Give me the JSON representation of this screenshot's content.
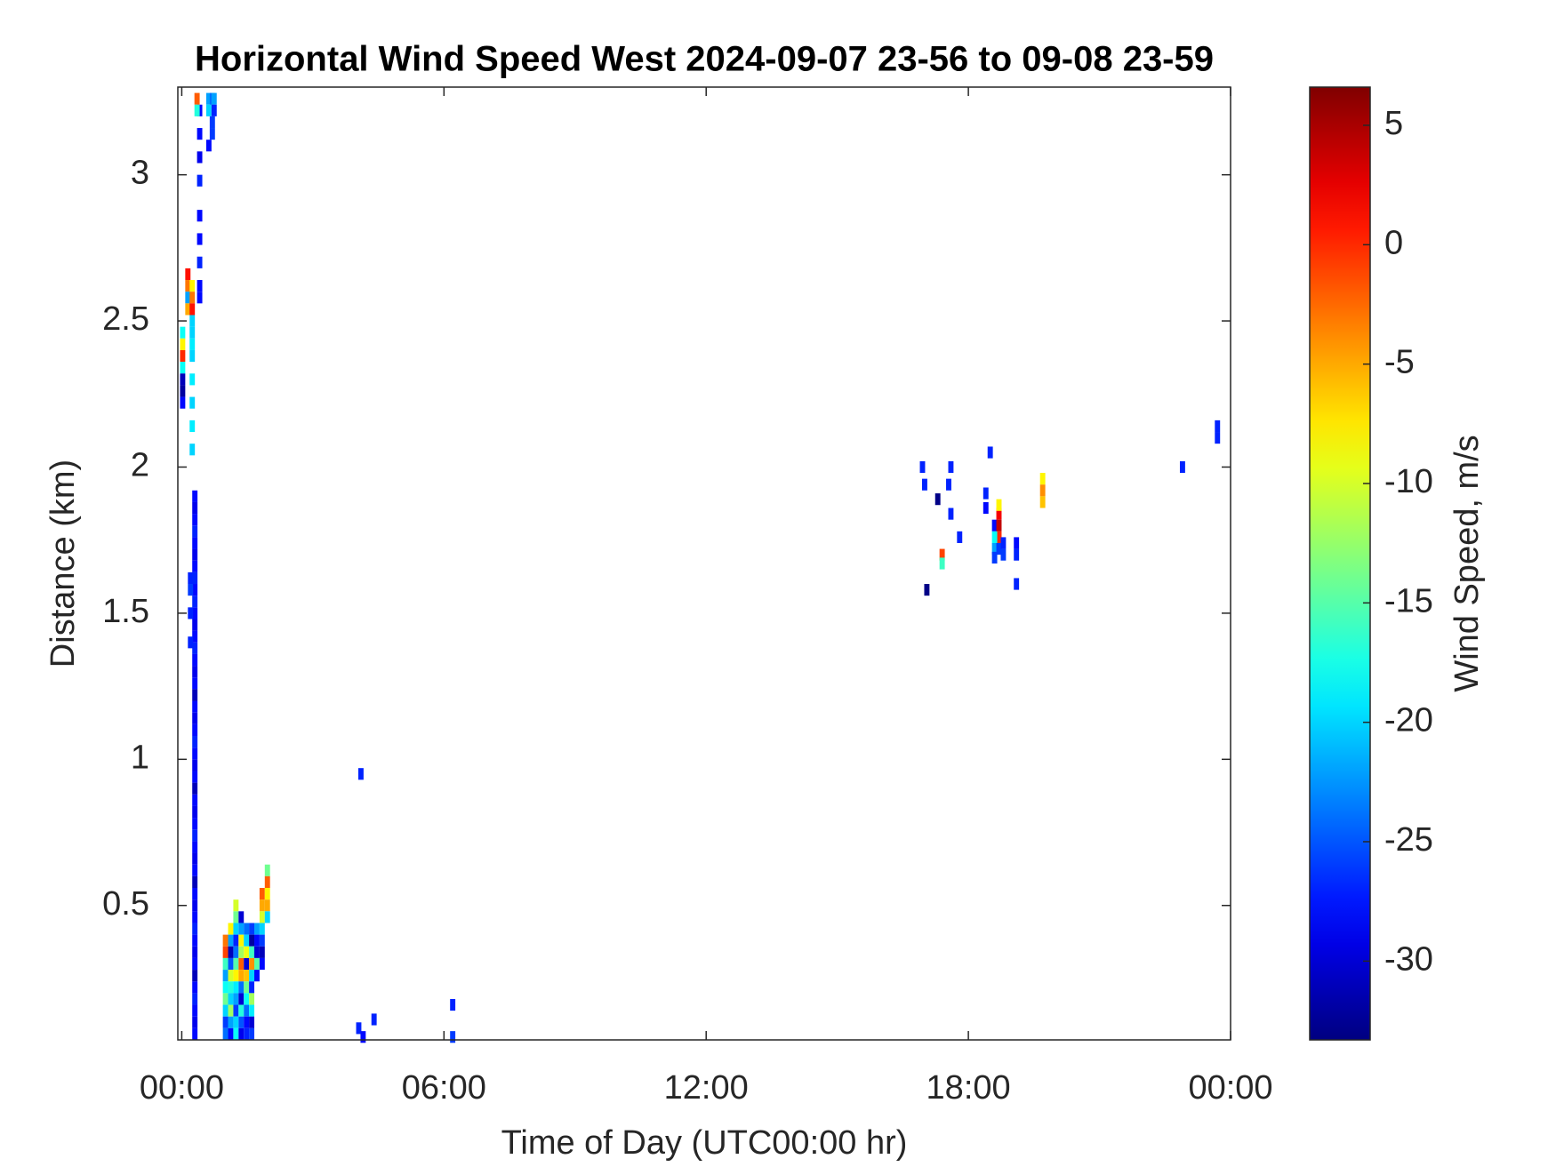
{
  "chart_data": {
    "type": "heatmap",
    "title": "Horizontal Wind Speed West 2024-09-07 23-56 to 09-08 23-59",
    "xlabel": "Time of Day (UTC00:00 hr)",
    "ylabel": "Distance (km)",
    "colorbar_label": "Wind Speed, m/s",
    "colormap": "jet",
    "xlim": [
      -0.09,
      24
    ],
    "ylim": [
      0.04,
      3.3
    ],
    "clim": [
      -33.3,
      6.6
    ],
    "xticks": [
      {
        "value": 0,
        "label": "00:00"
      },
      {
        "value": 6,
        "label": "06:00"
      },
      {
        "value": 12,
        "label": "12:00"
      },
      {
        "value": 18,
        "label": "18:00"
      },
      {
        "value": 24,
        "label": "00:00"
      }
    ],
    "yticks": [
      0.5,
      1,
      1.5,
      2,
      2.5,
      3
    ],
    "cticks": [
      5,
      0,
      -5,
      -10,
      -15,
      -20,
      -25,
      -30
    ],
    "cells": [
      [
        0.3,
        0.06,
        -28
      ],
      [
        0.3,
        0.1,
        -29
      ],
      [
        0.3,
        0.14,
        -28
      ],
      [
        0.3,
        0.18,
        -27
      ],
      [
        0.3,
        0.22,
        -28
      ],
      [
        0.3,
        0.26,
        -31
      ],
      [
        0.3,
        0.3,
        -28
      ],
      [
        0.3,
        0.34,
        -29
      ],
      [
        0.3,
        0.38,
        -28
      ],
      [
        0.3,
        0.42,
        -27
      ],
      [
        0.3,
        0.46,
        -28
      ],
      [
        0.3,
        0.5,
        -29
      ],
      [
        0.3,
        0.54,
        -28
      ],
      [
        0.3,
        0.58,
        -31
      ],
      [
        0.3,
        0.62,
        -28
      ],
      [
        0.3,
        0.66,
        -29
      ],
      [
        0.3,
        0.7,
        -28
      ],
      [
        0.3,
        0.74,
        -27
      ],
      [
        0.3,
        0.78,
        -28
      ],
      [
        0.3,
        0.82,
        -29
      ],
      [
        0.3,
        0.86,
        -28
      ],
      [
        0.3,
        0.9,
        -31
      ],
      [
        0.3,
        0.94,
        -28
      ],
      [
        0.3,
        0.98,
        -29
      ],
      [
        0.3,
        1.02,
        -28
      ],
      [
        0.3,
        1.06,
        -27
      ],
      [
        0.3,
        1.1,
        -28
      ],
      [
        0.3,
        1.14,
        -29
      ],
      [
        0.3,
        1.18,
        -28
      ],
      [
        0.3,
        1.22,
        -31
      ],
      [
        0.3,
        1.26,
        -28
      ],
      [
        0.3,
        1.3,
        -29
      ],
      [
        0.3,
        1.34,
        -28
      ],
      [
        0.3,
        1.38,
        -27
      ],
      [
        0.3,
        1.42,
        -28
      ],
      [
        0.3,
        1.46,
        -29
      ],
      [
        0.3,
        1.5,
        -28
      ],
      [
        0.3,
        1.54,
        -27
      ],
      [
        0.3,
        1.58,
        -28
      ],
      [
        0.3,
        1.62,
        -27
      ],
      [
        0.3,
        1.66,
        -28
      ],
      [
        0.3,
        1.7,
        -29
      ],
      [
        0.3,
        1.74,
        -28
      ],
      [
        0.3,
        1.78,
        -27
      ],
      [
        0.3,
        1.82,
        -28
      ],
      [
        0.3,
        1.86,
        -29
      ],
      [
        0.3,
        1.9,
        -28
      ],
      [
        0.2,
        1.4,
        -27
      ],
      [
        0.2,
        1.5,
        -27
      ],
      [
        0.2,
        1.58,
        -26
      ],
      [
        0.2,
        1.62,
        -27
      ],
      [
        0.41,
        2.58,
        -28
      ],
      [
        0.41,
        2.62,
        -28
      ],
      [
        0.41,
        2.7,
        -27
      ],
      [
        0.41,
        2.78,
        -28
      ],
      [
        0.41,
        2.86,
        -28
      ],
      [
        0.41,
        2.98,
        -27
      ],
      [
        0.41,
        3.06,
        -29
      ],
      [
        0.41,
        3.14,
        -28
      ],
      [
        0.41,
        3.22,
        -28
      ],
      [
        0.62,
        3.26,
        -22
      ],
      [
        0.62,
        3.22,
        -20
      ],
      [
        0.7,
        3.26,
        -24
      ],
      [
        0.7,
        3.18,
        -26
      ],
      [
        0.7,
        3.14,
        -26
      ],
      [
        0.74,
        3.26,
        -22
      ],
      [
        0.74,
        3.22,
        -27
      ],
      [
        0.62,
        3.1,
        -28
      ],
      [
        0.35,
        3.26,
        -2
      ],
      [
        0.35,
        3.22,
        -17
      ],
      [
        0.02,
        2.46,
        -18
      ],
      [
        0.02,
        2.42,
        -8
      ],
      [
        0.02,
        2.38,
        0
      ],
      [
        0.02,
        2.34,
        -18
      ],
      [
        0.02,
        2.3,
        -31
      ],
      [
        0.02,
        2.26,
        -32
      ],
      [
        0.02,
        2.22,
        -28
      ],
      [
        0.14,
        2.66,
        1
      ],
      [
        0.14,
        2.62,
        -3
      ],
      [
        0.14,
        2.58,
        -22
      ],
      [
        0.14,
        2.54,
        -5
      ],
      [
        0.24,
        2.62,
        -8
      ],
      [
        0.24,
        2.58,
        -3
      ],
      [
        0.24,
        2.54,
        1
      ],
      [
        0.24,
        2.5,
        -20
      ],
      [
        0.24,
        2.46,
        -20
      ],
      [
        0.24,
        2.42,
        -19
      ],
      [
        0.24,
        2.38,
        -20
      ],
      [
        0.24,
        2.3,
        -19
      ],
      [
        0.24,
        2.22,
        -20
      ],
      [
        0.24,
        2.14,
        -19
      ],
      [
        0.24,
        2.06,
        -20
      ],
      [
        1.0,
        0.38,
        -3
      ],
      [
        1.0,
        0.34,
        -1
      ],
      [
        1.0,
        0.3,
        -16
      ],
      [
        1.0,
        0.26,
        -22
      ],
      [
        1.0,
        0.22,
        -18
      ],
      [
        1.0,
        0.18,
        -14
      ],
      [
        1.0,
        0.14,
        -20
      ],
      [
        1.0,
        0.1,
        -26
      ],
      [
        1.0,
        0.06,
        -24
      ],
      [
        1.12,
        0.42,
        -8
      ],
      [
        1.12,
        0.38,
        -22
      ],
      [
        1.12,
        0.34,
        -31
      ],
      [
        1.12,
        0.3,
        -25
      ],
      [
        1.12,
        0.26,
        -10
      ],
      [
        1.12,
        0.22,
        -17
      ],
      [
        1.12,
        0.18,
        -20
      ],
      [
        1.12,
        0.14,
        -12
      ],
      [
        1.12,
        0.1,
        -22
      ],
      [
        1.12,
        0.06,
        -28
      ],
      [
        1.24,
        0.5,
        -10
      ],
      [
        1.24,
        0.46,
        -14
      ],
      [
        1.24,
        0.42,
        -20
      ],
      [
        1.24,
        0.38,
        -27
      ],
      [
        1.24,
        0.34,
        -24
      ],
      [
        1.24,
        0.3,
        -15
      ],
      [
        1.24,
        0.26,
        -8
      ],
      [
        1.24,
        0.22,
        -19
      ],
      [
        1.24,
        0.18,
        -22
      ],
      [
        1.24,
        0.14,
        -26
      ],
      [
        1.24,
        0.1,
        -20
      ],
      [
        1.24,
        0.06,
        -18
      ],
      [
        1.36,
        0.46,
        -30
      ],
      [
        1.36,
        0.42,
        -22
      ],
      [
        1.36,
        0.38,
        -8
      ],
      [
        1.36,
        0.34,
        -12
      ],
      [
        1.36,
        0.3,
        -2
      ],
      [
        1.36,
        0.26,
        -5
      ],
      [
        1.36,
        0.22,
        -24
      ],
      [
        1.36,
        0.18,
        -30
      ],
      [
        1.36,
        0.14,
        -17
      ],
      [
        1.36,
        0.1,
        -25
      ],
      [
        1.36,
        0.06,
        -29
      ],
      [
        1.48,
        0.42,
        -24
      ],
      [
        1.48,
        0.38,
        -20
      ],
      [
        1.48,
        0.34,
        -9
      ],
      [
        1.48,
        0.3,
        -30
      ],
      [
        1.48,
        0.26,
        -6
      ],
      [
        1.48,
        0.22,
        -14
      ],
      [
        1.48,
        0.18,
        -18
      ],
      [
        1.48,
        0.14,
        -24
      ],
      [
        1.48,
        0.1,
        -28
      ],
      [
        1.48,
        0.06,
        -27
      ],
      [
        1.6,
        0.42,
        -26
      ],
      [
        1.6,
        0.38,
        -32
      ],
      [
        1.6,
        0.34,
        -16
      ],
      [
        1.6,
        0.3,
        -4
      ],
      [
        1.6,
        0.26,
        -20
      ],
      [
        1.6,
        0.22,
        -27
      ],
      [
        1.6,
        0.18,
        -12
      ],
      [
        1.6,
        0.14,
        -19
      ],
      [
        1.6,
        0.1,
        -30
      ],
      [
        1.6,
        0.06,
        -26
      ],
      [
        1.72,
        0.42,
        -22
      ],
      [
        1.72,
        0.38,
        -28
      ],
      [
        1.72,
        0.34,
        -30
      ],
      [
        1.72,
        0.3,
        -15
      ],
      [
        1.72,
        0.26,
        -28
      ],
      [
        1.84,
        0.54,
        -2
      ],
      [
        1.84,
        0.5,
        -5
      ],
      [
        1.84,
        0.46,
        -10
      ],
      [
        1.84,
        0.42,
        -20
      ],
      [
        1.84,
        0.38,
        -26
      ],
      [
        1.84,
        0.34,
        -31
      ],
      [
        1.84,
        0.3,
        -28
      ],
      [
        1.96,
        0.62,
        -14
      ],
      [
        1.96,
        0.58,
        -2
      ],
      [
        1.96,
        0.54,
        -8
      ],
      [
        1.96,
        0.5,
        -5
      ],
      [
        1.96,
        0.46,
        -20
      ],
      [
        4.1,
        0.95,
        -27
      ],
      [
        4.05,
        0.08,
        -27
      ],
      [
        4.15,
        0.05,
        -28
      ],
      [
        4.4,
        0.11,
        -27
      ],
      [
        6.2,
        0.16,
        -27
      ],
      [
        6.2,
        0.05,
        -26
      ],
      [
        16.95,
        2.0,
        -27
      ],
      [
        17.0,
        1.94,
        -27
      ],
      [
        17.3,
        1.89,
        -33
      ],
      [
        17.55,
        1.94,
        -27
      ],
      [
        17.6,
        2.0,
        -27
      ],
      [
        17.6,
        1.84,
        -27
      ],
      [
        17.8,
        1.76,
        -27
      ],
      [
        17.05,
        1.58,
        -33
      ],
      [
        17.4,
        1.7,
        -1
      ],
      [
        17.4,
        1.67,
        -16
      ],
      [
        18.4,
        1.91,
        -27
      ],
      [
        18.5,
        2.05,
        -27
      ],
      [
        18.4,
        1.86,
        -28
      ],
      [
        18.6,
        1.8,
        -28
      ],
      [
        18.7,
        1.84,
        2
      ],
      [
        18.7,
        1.8,
        4
      ],
      [
        18.7,
        1.76,
        0
      ],
      [
        18.6,
        1.76,
        -18
      ],
      [
        18.6,
        1.72,
        -22
      ],
      [
        18.7,
        1.72,
        -26
      ],
      [
        18.8,
        1.7,
        -26
      ],
      [
        18.8,
        1.74,
        -27
      ],
      [
        18.7,
        1.87,
        -8
      ],
      [
        18.6,
        1.69,
        -26
      ],
      [
        19.1,
        1.74,
        -28
      ],
      [
        19.1,
        1.7,
        -27
      ],
      [
        19.1,
        1.6,
        -27
      ],
      [
        19.7,
        1.96,
        -8
      ],
      [
        19.7,
        1.92,
        -4
      ],
      [
        19.7,
        1.88,
        -6
      ],
      [
        22.9,
        2.0,
        -27
      ],
      [
        23.7,
        2.14,
        -27
      ],
      [
        23.7,
        2.1,
        -27
      ]
    ]
  }
}
